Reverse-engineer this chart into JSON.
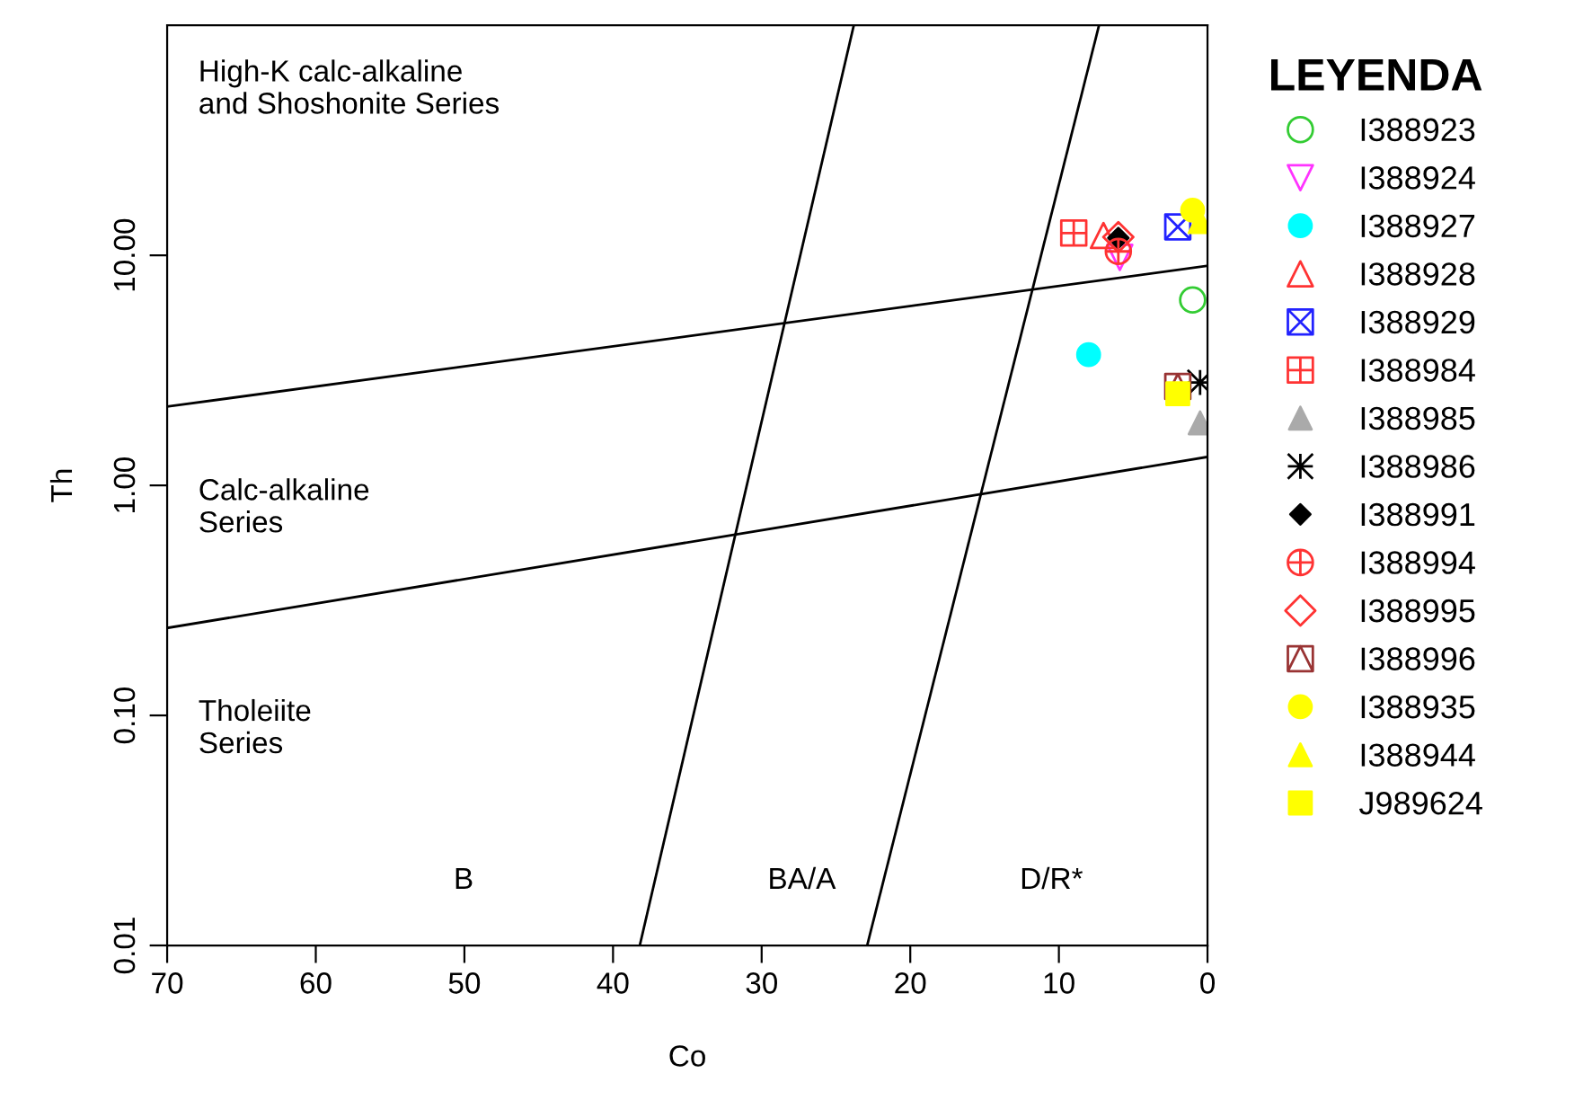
{
  "chart_data": {
    "type": "scatter",
    "xlabel": "Co",
    "ylabel": "Th",
    "legend_title": "LEYENDA",
    "legend": "right",
    "log": "y",
    "grid": false,
    "xlim": [
      70,
      0
    ],
    "xticks": [
      70,
      60,
      50,
      40,
      30,
      20,
      10,
      0
    ],
    "ylim": [
      0.01,
      100
    ],
    "yticks": [
      {
        "value": 0.01,
        "label": "0.01"
      },
      {
        "value": 0.1,
        "label": "0.10"
      },
      {
        "value": 1,
        "label": "1.00"
      },
      {
        "value": 10,
        "label": "10.00"
      }
    ],
    "annotations": [
      "High-K calc-alkaline\nand Shoshonite Series",
      "Calc-alkaline\nSeries",
      "Tholeiite\nSeries",
      "B",
      "BA/A",
      "D/R*"
    ],
    "series": [
      {
        "type": "line",
        "color": "#000000",
        "x": [
          70,
          0
        ],
        "values": [
          2.2,
          9.0
        ]
      },
      {
        "type": "line",
        "color": "#000000",
        "x": [
          70,
          0
        ],
        "values": [
          0.24,
          1.33
        ]
      },
      {
        "type": "line",
        "color": "#000000",
        "x": [
          38.2,
          23.8
        ],
        "values": [
          0.01,
          100
        ]
      },
      {
        "type": "line",
        "color": "#000000",
        "x": [
          22.9,
          7.3
        ],
        "values": [
          0.01,
          100
        ]
      },
      {
        "name": "I388923",
        "color": "#33cc33",
        "marker": "circle",
        "x": [
          1.0
        ],
        "values": [
          6.4
        ]
      },
      {
        "name": "I388924",
        "color": "#ff33ff",
        "marker": "triangle",
        "x": [
          5.9
        ],
        "values": [
          9.8
        ]
      },
      {
        "name": "I388927",
        "color": "#00ffff",
        "marker": "circle",
        "x": [
          8.0
        ],
        "values": [
          3.7
        ]
      },
      {
        "name": "I388928",
        "color": "#ff3333",
        "marker": "triangle",
        "x": [
          7.0
        ],
        "values": [
          12.2
        ]
      },
      {
        "name": "I388929",
        "color": "#2222ff",
        "marker": "cross",
        "x": [
          2.0
        ],
        "values": [
          13.3
        ]
      },
      {
        "name": "I388984",
        "color": "#ff3333",
        "marker": "cross",
        "x": [
          9.0
        ],
        "values": [
          12.5
        ]
      },
      {
        "name": "I388985",
        "color": "#aaaaaa",
        "marker": "triangle",
        "x": [
          0.5
        ],
        "values": [
          1.87
        ]
      },
      {
        "name": "I388986",
        "color": "#000000",
        "marker": "cross",
        "x": [
          0.5
        ],
        "values": [
          2.8
        ]
      },
      {
        "name": "I388991",
        "color": "#000000",
        "marker": "diamond",
        "x": [
          6.0
        ],
        "values": [
          11.9
        ]
      },
      {
        "name": "I388994",
        "color": "#ff3333",
        "marker": "cross",
        "x": [
          6.0
        ],
        "values": [
          10.4
        ]
      },
      {
        "name": "I388995",
        "color": "#ff3333",
        "marker": "diamond",
        "x": [
          6.0
        ],
        "values": [
          12.0
        ]
      },
      {
        "name": "I388996",
        "color": "#993333",
        "marker": "square",
        "x": [
          2.0
        ],
        "values": [
          2.69
        ]
      },
      {
        "name": "I388935",
        "color": "#ffff00",
        "marker": "circle",
        "x": [
          1.0
        ],
        "values": [
          15.7
        ]
      },
      {
        "name": "I388944",
        "color": "#ffff00",
        "marker": "triangle",
        "x": [
          0.5
        ],
        "values": [
          14.0
        ]
      },
      {
        "name": "J989624",
        "color": "#ffff00",
        "marker": "square",
        "x": [
          2.0
        ],
        "values": [
          2.5
        ]
      }
    ]
  }
}
